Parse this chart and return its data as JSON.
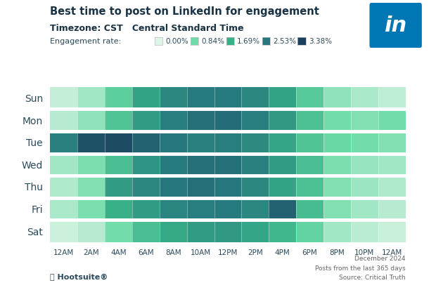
{
  "title_line1": "Best time to post on LinkedIn for engagement",
  "title_line2": "Timezone: CST   Central Standard Time",
  "legend_label": "Engagement rate:",
  "legend_values": [
    "0.00%",
    "0.84%",
    "1.69%",
    "2.53%",
    "3.38%"
  ],
  "days": [
    "Sun",
    "Mon",
    "Tue",
    "Wed",
    "Thu",
    "Fri",
    "Sat"
  ],
  "hours": [
    "12AM",
    "2AM",
    "4AM",
    "6AM",
    "8AM",
    "10AM",
    "12PM",
    "2PM",
    "4PM",
    "6PM",
    "8PM",
    "10PM",
    "12AM"
  ],
  "footer_right": "December 2024\nPosts from the last 365 days\nSource: Critical Truth",
  "background_color": "#ffffff",
  "colormap_colors": [
    "#dff5e8",
    "#6edba8",
    "#38b088",
    "#27787e",
    "#1b3f5a"
  ],
  "vmin": 0.0,
  "vmax": 3.38,
  "title_color": "#1a3344",
  "label_color": "#2a4a5a",
  "linkedin_color": "#0077B5",
  "heatmap_data": [
    [
      0.2,
      0.45,
      1.1,
      1.9,
      2.3,
      2.5,
      2.5,
      2.3,
      1.9,
      1.2,
      0.6,
      0.4,
      0.25
    ],
    [
      0.3,
      0.6,
      1.3,
      2.0,
      2.45,
      2.65,
      2.7,
      2.45,
      2.05,
      1.35,
      0.8,
      0.7,
      0.8
    ],
    [
      2.4,
      3.1,
      3.2,
      2.85,
      2.55,
      2.4,
      2.45,
      2.25,
      1.85,
      1.3,
      0.9,
      0.8,
      0.7
    ],
    [
      0.45,
      0.75,
      1.4,
      2.1,
      2.5,
      2.65,
      2.65,
      2.4,
      2.0,
      1.4,
      0.75,
      0.55,
      0.45
    ],
    [
      0.35,
      0.7,
      2.0,
      2.3,
      2.55,
      2.65,
      2.55,
      2.3,
      1.9,
      1.35,
      0.7,
      0.5,
      0.35
    ],
    [
      0.4,
      0.75,
      1.7,
      2.0,
      2.35,
      2.45,
      2.5,
      2.3,
      2.85,
      1.45,
      0.7,
      0.45,
      0.3
    ],
    [
      0.15,
      0.3,
      0.8,
      1.4,
      1.8,
      2.0,
      2.05,
      1.85,
      1.55,
      1.0,
      0.45,
      0.28,
      0.18
    ]
  ]
}
